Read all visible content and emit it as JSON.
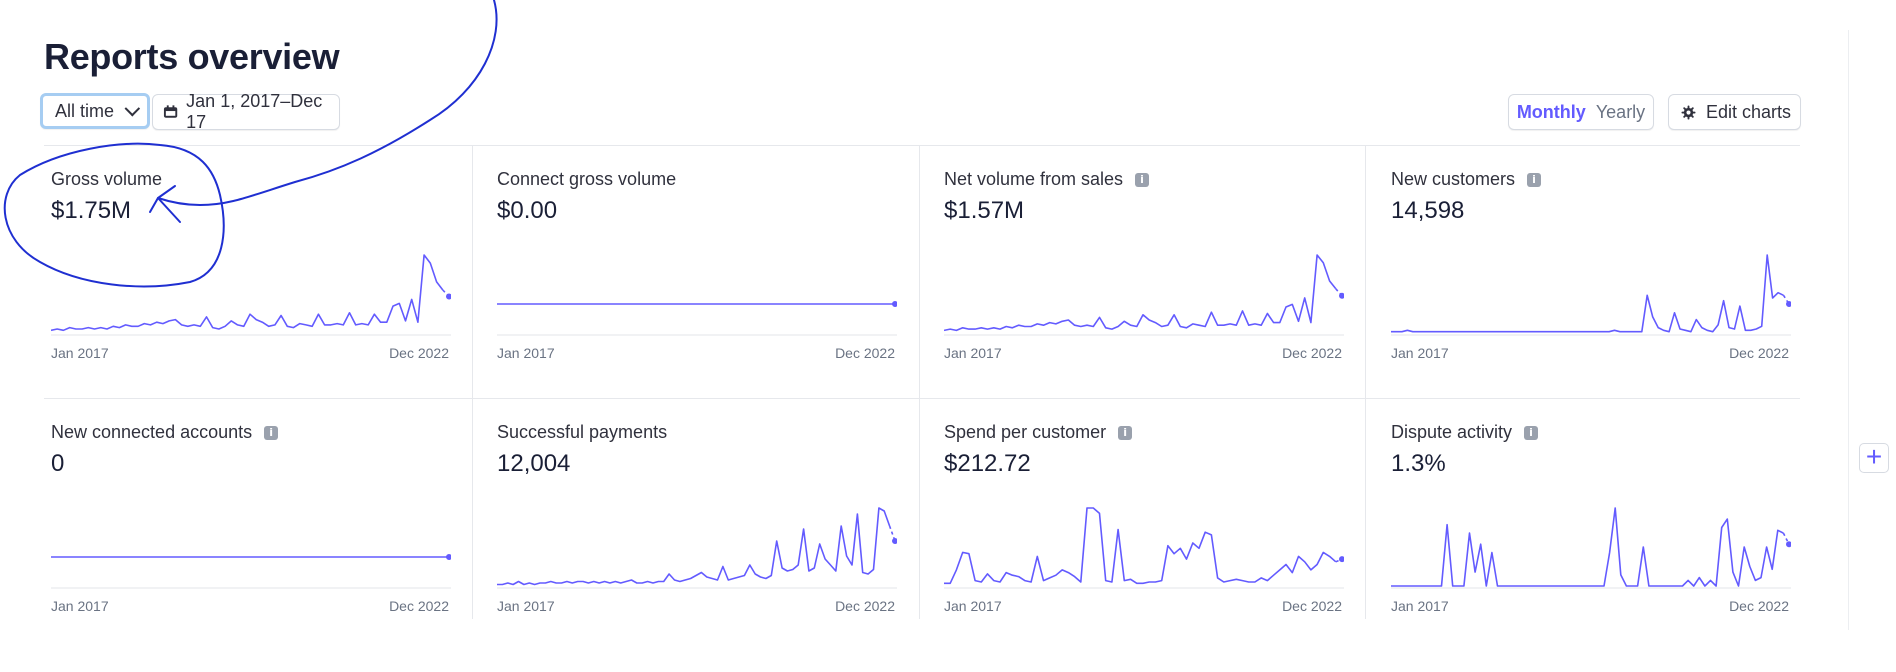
{
  "header": {
    "title": "Reports overview",
    "range_select": "All time",
    "date_range": "Jan 1, 2017–Dec 17",
    "period_toggle": {
      "monthly": "Monthly",
      "yearly": "Yearly",
      "selected": "Monthly"
    },
    "edit_charts": "Edit charts"
  },
  "colors": {
    "accent": "#635bff",
    "annotation": "#1f2fd1",
    "focus_ring": "#a6cdf2"
  },
  "cards": [
    {
      "label": "Gross volume",
      "value": "$1.75M",
      "info": false,
      "start": "Jan 2017",
      "end": "Dec 2022",
      "series": [
        2,
        3,
        2,
        4,
        3,
        3,
        4,
        3,
        4,
        3,
        5,
        4,
        6,
        5,
        5,
        7,
        6,
        8,
        7,
        9,
        10,
        6,
        5,
        6,
        5,
        12,
        4,
        3,
        5,
        9,
        6,
        5,
        14,
        10,
        8,
        5,
        6,
        13,
        5,
        4,
        7,
        6,
        5,
        14,
        6,
        6,
        7,
        6,
        15,
        6,
        7,
        6,
        14,
        8,
        8,
        20,
        22,
        9,
        25,
        8,
        58,
        52,
        38,
        32,
        42
      ],
      "tail": 20
    },
    {
      "label": "Connect gross volume",
      "value": "$0.00",
      "info": false,
      "start": "Jan 2017",
      "end": "Dec 2022",
      "flat": true
    },
    {
      "label": "Net volume from sales",
      "value": "$1.57M",
      "info": true,
      "start": "Jan 2017",
      "end": "Dec 2022",
      "series": [
        2,
        3,
        2,
        4,
        3,
        3,
        4,
        3,
        4,
        3,
        5,
        4,
        6,
        5,
        5,
        7,
        6,
        8,
        7,
        9,
        10,
        6,
        5,
        6,
        5,
        12,
        4,
        3,
        5,
        9,
        6,
        5,
        14,
        10,
        8,
        5,
        6,
        14,
        5,
        4,
        7,
        6,
        5,
        16,
        6,
        6,
        7,
        6,
        17,
        6,
        7,
        6,
        15,
        8,
        8,
        20,
        22,
        9,
        27,
        8,
        60,
        54,
        40,
        34,
        44
      ],
      "tail": 20
    },
    {
      "label": "New customers",
      "value": "14,598",
      "info": true,
      "start": "Jan 2017",
      "end": "Dec 2022",
      "series": [
        1,
        1,
        1,
        2,
        1,
        1,
        1,
        1,
        1,
        1,
        1,
        1,
        1,
        1,
        1,
        1,
        1,
        1,
        1,
        1,
        1,
        1,
        1,
        1,
        1,
        1,
        1,
        1,
        1,
        1,
        1,
        1,
        1,
        1,
        1,
        1,
        1,
        1,
        1,
        1,
        1,
        2,
        1,
        1,
        1,
        1,
        1,
        28,
        12,
        4,
        2,
        1,
        15,
        3,
        2,
        1,
        10,
        4,
        2,
        1,
        6,
        24,
        4,
        3,
        20,
        2,
        2,
        3,
        5,
        58,
        26,
        30,
        28,
        32
      ],
      "tail": 14
    },
    {
      "label": "New connected accounts",
      "value": "0",
      "info": true,
      "start": "Jan 2017",
      "end": "Dec 2022",
      "flat": true
    },
    {
      "label": "Successful payments",
      "value": "12,004",
      "info": false,
      "start": "Jan 2017",
      "end": "Dec 2022",
      "series": [
        1,
        1,
        2,
        1,
        3,
        1,
        2,
        1,
        2,
        2,
        3,
        2,
        2,
        3,
        2,
        3,
        3,
        2,
        3,
        2,
        3,
        2,
        3,
        2,
        3,
        4,
        2,
        2,
        3,
        2,
        3,
        3,
        8,
        4,
        3,
        4,
        5,
        7,
        9,
        6,
        5,
        4,
        13,
        4,
        5,
        6,
        7,
        14,
        8,
        6,
        5,
        7,
        30,
        12,
        10,
        11,
        14,
        38,
        10,
        12,
        28,
        18,
        14,
        10,
        40,
        20,
        14,
        48,
        9,
        8,
        11,
        52,
        50,
        40,
        42
      ],
      "tail": 18
    },
    {
      "label": "Spend per customer",
      "value": "$212.72",
      "info": true,
      "start": "Jan 2017",
      "end": "Dec 2022",
      "series": [
        2,
        2,
        12,
        25,
        24,
        4,
        3,
        9,
        4,
        3,
        10,
        8,
        7,
        4,
        3,
        22,
        4,
        6,
        8,
        12,
        10,
        7,
        3,
        58,
        58,
        54,
        4,
        3,
        42,
        4,
        5,
        2,
        2,
        3,
        3,
        4,
        30,
        24,
        28,
        20,
        32,
        28,
        40,
        38,
        6,
        3,
        4,
        5,
        4,
        3,
        3,
        6,
        4,
        8,
        12,
        16,
        10,
        22,
        18,
        12,
        16,
        25,
        22,
        18,
        20
      ],
      "tail": 0
    },
    {
      "label": "Dispute activity",
      "value": "1.3%",
      "info": true,
      "start": "Jan 2017",
      "end": "Dec 2022",
      "series": [
        0,
        0,
        0,
        0,
        0,
        0,
        0,
        0,
        0,
        0,
        44,
        0,
        0,
        0,
        38,
        10,
        30,
        0,
        24,
        0,
        0,
        0,
        0,
        0,
        0,
        0,
        0,
        0,
        0,
        0,
        0,
        0,
        0,
        0,
        0,
        0,
        0,
        0,
        0,
        24,
        56,
        8,
        0,
        0,
        0,
        28,
        0,
        0,
        0,
        0,
        0,
        0,
        0,
        4,
        0,
        6,
        0,
        4,
        0,
        42,
        48,
        10,
        0,
        28,
        14,
        4,
        6,
        28,
        12,
        40,
        38,
        30
      ],
      "tail": 0
    }
  ],
  "sidebar": {
    "add_chart": "+"
  }
}
